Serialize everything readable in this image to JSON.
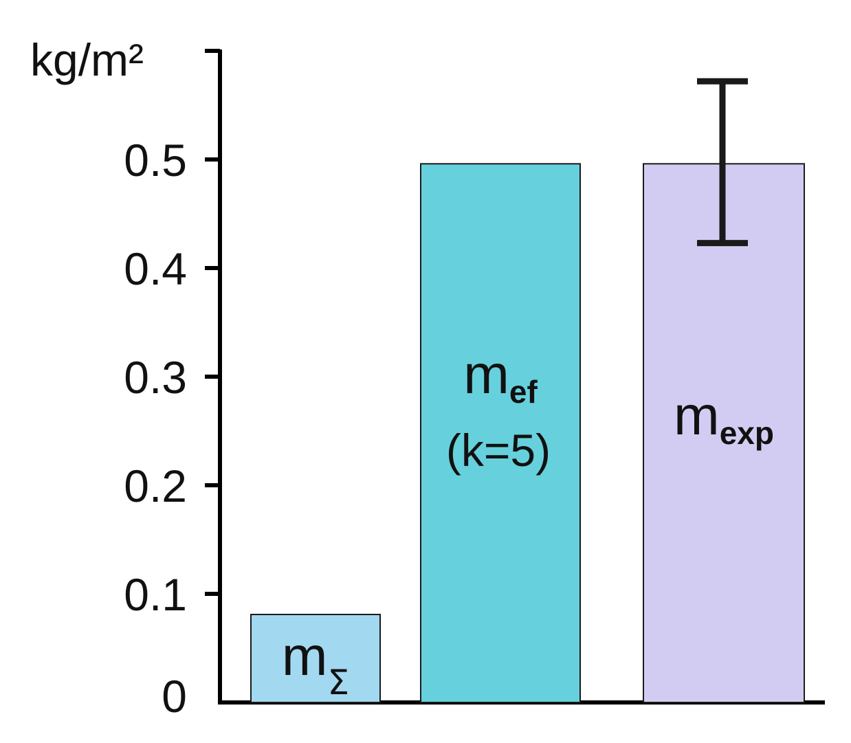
{
  "chart_data": {
    "type": "bar",
    "ylabel": "kg/m²",
    "ylim": [
      0,
      0.6
    ],
    "yticks": [
      0,
      0.1,
      0.2,
      0.3,
      0.4,
      0.5
    ],
    "ytick_labels": [
      "0",
      "0.1",
      "0.2",
      "0.3",
      "0.4",
      "0.5"
    ],
    "grid": false,
    "bars": [
      {
        "main": "m",
        "sub": "Σ",
        "line2": "",
        "value": 0.081,
        "color": "#a3d8f1"
      },
      {
        "main": "m",
        "sub": "ef",
        "line2": "(k=5)",
        "value": 0.496,
        "color": "#66d1dc"
      },
      {
        "main": "m",
        "sub": "exp",
        "line2": "",
        "value": 0.496,
        "color": "#d3ccf2",
        "error_low": 0.423,
        "error_high": 0.572
      }
    ],
    "colors": {
      "axis": "#000000",
      "bar_stroke": "#1a1a1a"
    }
  }
}
